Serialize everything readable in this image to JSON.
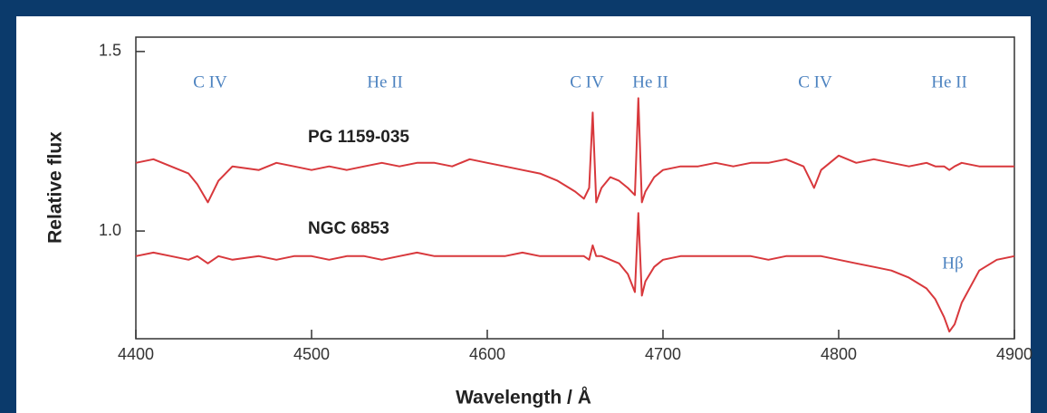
{
  "chart_data": {
    "type": "line",
    "x_label": "Wavelength / Å",
    "y_label": "Relative flux",
    "x": [
      4400,
      4410,
      4420,
      4430,
      4435,
      4441,
      4447,
      4455,
      4470,
      4480,
      4490,
      4500,
      4510,
      4520,
      4530,
      4540,
      4550,
      4560,
      4570,
      4580,
      4590,
      4600,
      4610,
      4620,
      4630,
      4640,
      4650,
      4655,
      4658,
      4660,
      4662,
      4665,
      4670,
      4675,
      4680,
      4684,
      4686,
      4688,
      4690,
      4695,
      4700,
      4710,
      4720,
      4730,
      4740,
      4750,
      4760,
      4770,
      4780,
      4784,
      4786,
      4790,
      4800,
      4810,
      4820,
      4830,
      4840,
      4850,
      4855,
      4860,
      4863,
      4866,
      4870,
      4880,
      4890,
      4900
    ],
    "series": [
      {
        "name": "PG 1159-035",
        "color": "#d8383c",
        "values": [
          1.19,
          1.2,
          1.18,
          1.16,
          1.13,
          1.08,
          1.14,
          1.18,
          1.17,
          1.19,
          1.18,
          1.17,
          1.18,
          1.17,
          1.18,
          1.19,
          1.18,
          1.19,
          1.19,
          1.18,
          1.2,
          1.19,
          1.18,
          1.17,
          1.16,
          1.14,
          1.11,
          1.09,
          1.12,
          1.33,
          1.08,
          1.12,
          1.15,
          1.14,
          1.12,
          1.1,
          1.37,
          1.08,
          1.11,
          1.15,
          1.17,
          1.18,
          1.18,
          1.19,
          1.18,
          1.19,
          1.19,
          1.2,
          1.18,
          1.14,
          1.12,
          1.17,
          1.21,
          1.19,
          1.2,
          1.19,
          1.18,
          1.19,
          1.18,
          1.18,
          1.17,
          1.18,
          1.19,
          1.18,
          1.18,
          1.18
        ]
      },
      {
        "name": "NGC 6853",
        "color": "#d8383c",
        "values": [
          0.93,
          0.94,
          0.93,
          0.92,
          0.93,
          0.91,
          0.93,
          0.92,
          0.93,
          0.92,
          0.93,
          0.93,
          0.92,
          0.93,
          0.93,
          0.92,
          0.93,
          0.94,
          0.93,
          0.93,
          0.93,
          0.93,
          0.93,
          0.94,
          0.93,
          0.93,
          0.93,
          0.93,
          0.92,
          0.96,
          0.93,
          0.93,
          0.92,
          0.91,
          0.88,
          0.83,
          1.05,
          0.82,
          0.86,
          0.9,
          0.92,
          0.93,
          0.93,
          0.93,
          0.93,
          0.93,
          0.92,
          0.93,
          0.93,
          0.93,
          0.93,
          0.93,
          0.92,
          0.91,
          0.9,
          0.89,
          0.87,
          0.84,
          0.81,
          0.76,
          0.72,
          0.74,
          0.8,
          0.89,
          0.92,
          0.93
        ]
      }
    ],
    "annotations": [
      "C IV",
      "He II",
      "C IV",
      "He II",
      "C IV",
      "He II",
      "Hβ"
    ],
    "xlim": [
      4400,
      4900
    ],
    "xticks": [
      4400,
      4500,
      4600,
      4700,
      4800,
      4900
    ],
    "ylim": [
      0.7,
      1.54
    ],
    "yticks": [
      1.5,
      {
        "value": 1,
        "label": "1.0"
      }
    ]
  }
}
